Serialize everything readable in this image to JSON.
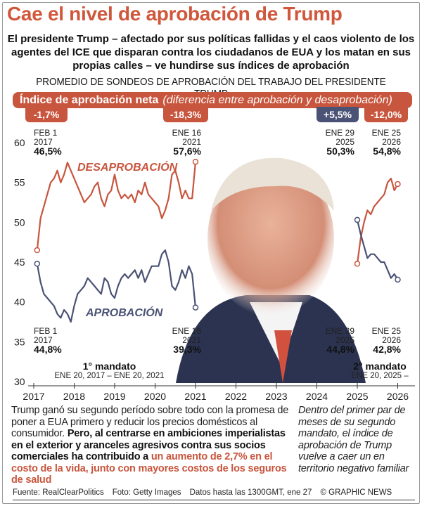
{
  "title": "Cae el nivel de aprobación de Trump",
  "subtitle": "El presidente Trump – afectado por sus políticas fallidas y el caos violento de los agentes del ICE que disparan contra los ciudadanos de EUA y los matan en sus propias calles – ve hundirse sus índices de aprobación",
  "section_heading": "PROMEDIO DE SONDEOS DE APROBACIÓN DEL TRABAJO DEL PRESIDENTE TRUMP",
  "net_bar": {
    "label": "Índice de aprobación neta",
    "note": "(diferencia entre aprobación y desaprobación)"
  },
  "net_values": [
    {
      "value": "-1,7%",
      "color": "#c8553d"
    },
    {
      "value": "-18,3%",
      "color": "#c8553d"
    },
    {
      "value": "+5,5%",
      "color": "#4a5275"
    },
    {
      "value": "-12,0%",
      "color": "#c8553d"
    }
  ],
  "annotations": {
    "top": [
      {
        "date1": "FEB 1",
        "date2": "2017",
        "value": "46,5%"
      },
      {
        "date1": "ENE 16",
        "date2": "2021",
        "value": "57,6%"
      },
      {
        "date1": "ENE 29",
        "date2": "2025",
        "value": "50,3%"
      },
      {
        "date1": "ENE 25",
        "date2": "2026",
        "value": "54,8%"
      }
    ],
    "bottom": [
      {
        "date1": "FEB 1",
        "date2": "2017",
        "value": "44,8%"
      },
      {
        "date1": "ENE 16",
        "date2": "2021",
        "value": "39,3%"
      },
      {
        "date1": "ENE 29",
        "date2": "2025",
        "value": "44,8%"
      },
      {
        "date1": "ENE 25",
        "date2": "2026",
        "value": "42,8%"
      }
    ]
  },
  "terms": [
    {
      "label": "1° mandato",
      "range": "ENE 20, 2017 – ENE 20, 2021"
    },
    {
      "label": "2° mandato",
      "range": "ENE 20, 2025 –"
    }
  ],
  "chart_data": {
    "type": "line",
    "ylim": [
      30,
      60
    ],
    "yticks": [
      "30",
      "35",
      "40",
      "45",
      "50",
      "55",
      "60"
    ],
    "xticks": [
      "2017",
      "2018",
      "2019",
      "2020",
      "2021",
      "2022",
      "2023",
      "2024",
      "2025",
      "2026"
    ],
    "grid": false,
    "series": [
      {
        "name": "DESAPROBACIÓN",
        "color": "#c8553d",
        "segments": [
          [
            [
              "2017-02",
              46.5
            ],
            [
              "2017-03",
              50.5
            ],
            [
              "2017-04",
              52
            ],
            [
              "2017-05",
              53.5
            ],
            [
              "2017-06",
              55
            ],
            [
              "2017-07",
              55.5
            ],
            [
              "2017-08",
              56.5
            ],
            [
              "2017-09",
              55
            ],
            [
              "2017-10",
              56
            ],
            [
              "2017-11",
              57.5
            ],
            [
              "2017-12",
              56.5
            ],
            [
              "2018-01",
              55.5
            ],
            [
              "2018-02",
              54.5
            ],
            [
              "2018-03",
              53.5
            ],
            [
              "2018-04",
              52.5
            ],
            [
              "2018-05",
              53
            ],
            [
              "2018-06",
              53.5
            ],
            [
              "2018-07",
              54.5
            ],
            [
              "2018-08",
              55
            ],
            [
              "2018-09",
              53
            ],
            [
              "2018-10",
              52
            ],
            [
              "2018-11",
              53.5
            ],
            [
              "2018-12",
              54
            ],
            [
              "2019-01",
              56
            ],
            [
              "2019-02",
              54
            ],
            [
              "2019-03",
              53
            ],
            [
              "2019-04",
              53.5
            ],
            [
              "2019-05",
              53
            ],
            [
              "2019-06",
              53.5
            ],
            [
              "2019-07",
              52.5
            ],
            [
              "2019-08",
              54
            ],
            [
              "2019-09",
              53.5
            ],
            [
              "2019-10",
              55
            ],
            [
              "2019-11",
              53.5
            ],
            [
              "2019-12",
              53
            ],
            [
              "2020-01",
              52.5
            ],
            [
              "2020-02",
              52
            ],
            [
              "2020-03",
              50.5
            ],
            [
              "2020-04",
              51.5
            ],
            [
              "2020-05",
              53
            ],
            [
              "2020-06",
              56
            ],
            [
              "2020-07",
              56.5
            ],
            [
              "2020-08",
              55
            ],
            [
              "2020-09",
              53
            ],
            [
              "2020-10",
              54
            ],
            [
              "2020-11",
              53
            ],
            [
              "2020-12",
              53
            ],
            [
              "2021-01",
              57.6
            ]
          ],
          [
            [
              "2025-01",
              44.8
            ],
            [
              "2025-02",
              48
            ],
            [
              "2025-03",
              50
            ],
            [
              "2025-04",
              51.5
            ],
            [
              "2025-05",
              51
            ],
            [
              "2025-06",
              52
            ],
            [
              "2025-07",
              52.5
            ],
            [
              "2025-08",
              53
            ],
            [
              "2025-09",
              53.5
            ],
            [
              "2025-10",
              55
            ],
            [
              "2025-11",
              55.5
            ],
            [
              "2025-12",
              54
            ],
            [
              "2026-01",
              54.8
            ]
          ]
        ]
      },
      {
        "name": "APROBACIÓN",
        "color": "#4a5275",
        "segments": [
          [
            [
              "2017-02",
              44.8
            ],
            [
              "2017-03",
              42.5
            ],
            [
              "2017-04",
              41
            ],
            [
              "2017-05",
              40.5
            ],
            [
              "2017-06",
              40
            ],
            [
              "2017-07",
              39.5
            ],
            [
              "2017-08",
              38.5
            ],
            [
              "2017-09",
              38
            ],
            [
              "2017-10",
              39
            ],
            [
              "2017-11",
              38.5
            ],
            [
              "2017-12",
              37.5
            ],
            [
              "2018-01",
              39.5
            ],
            [
              "2018-02",
              41
            ],
            [
              "2018-03",
              41.5
            ],
            [
              "2018-04",
              42
            ],
            [
              "2018-05",
              43
            ],
            [
              "2018-06",
              42.5
            ],
            [
              "2018-07",
              42
            ],
            [
              "2018-08",
              41.5
            ],
            [
              "2018-09",
              41
            ],
            [
              "2018-10",
              43
            ],
            [
              "2018-11",
              42.5
            ],
            [
              "2018-12",
              41
            ],
            [
              "2019-01",
              40.5
            ],
            [
              "2019-02",
              42
            ],
            [
              "2019-03",
              43
            ],
            [
              "2019-04",
              43.5
            ],
            [
              "2019-05",
              43
            ],
            [
              "2019-06",
              43.5
            ],
            [
              "2019-07",
              44
            ],
            [
              "2019-08",
              43
            ],
            [
              "2019-09",
              44
            ],
            [
              "2019-10",
              42.5
            ],
            [
              "2019-11",
              43.5
            ],
            [
              "2019-12",
              44.5
            ],
            [
              "2020-01",
              44.5
            ],
            [
              "2020-02",
              44.5
            ],
            [
              "2020-03",
              46
            ],
            [
              "2020-04",
              46.5
            ],
            [
              "2020-05",
              45
            ],
            [
              "2020-06",
              42
            ],
            [
              "2020-07",
              41.5
            ],
            [
              "2020-08",
              42.5
            ],
            [
              "2020-09",
              44
            ],
            [
              "2020-10",
              43
            ],
            [
              "2020-11",
              44.5
            ],
            [
              "2020-12",
              43.5
            ],
            [
              "2021-01",
              39.3
            ]
          ],
          [
            [
              "2025-01",
              50.3
            ],
            [
              "2025-02",
              48.5
            ],
            [
              "2025-03",
              47
            ],
            [
              "2025-04",
              45.5
            ],
            [
              "2025-05",
              46
            ],
            [
              "2025-06",
              46
            ],
            [
              "2025-07",
              45.5
            ],
            [
              "2025-08",
              45
            ],
            [
              "2025-09",
              45
            ],
            [
              "2025-10",
              44
            ],
            [
              "2025-11",
              43
            ],
            [
              "2025-12",
              43.5
            ],
            [
              "2026-01",
              42.8
            ]
          ]
        ]
      }
    ]
  },
  "body_text": {
    "plain": "Trump ganó su segundo período sobre todo con la promesa de poner a EUA primero y reducir los precios domésticos al consumidor. ",
    "bold": "Pero, al centrarse en ambiciones imperialistas en el exterior y aranceles agresivos contra sus socios comerciales ha contribuido a ",
    "highlight": "un aumento de 2,7% en el costo de la vida, junto con mayores costos de los seguros de salud"
  },
  "side_text": "Dentro del primer par de meses de su segundo mandato, el índice de aprobación de Trump vuelve a caer un en territorio negativo familiar",
  "footer": {
    "source": "Fuente: RealClearPolitics",
    "photo": "Foto: Getty Images",
    "data_note": "Datos hasta las 1300GMT, ene 27",
    "credit": "© GRAPHIC NEWS"
  }
}
